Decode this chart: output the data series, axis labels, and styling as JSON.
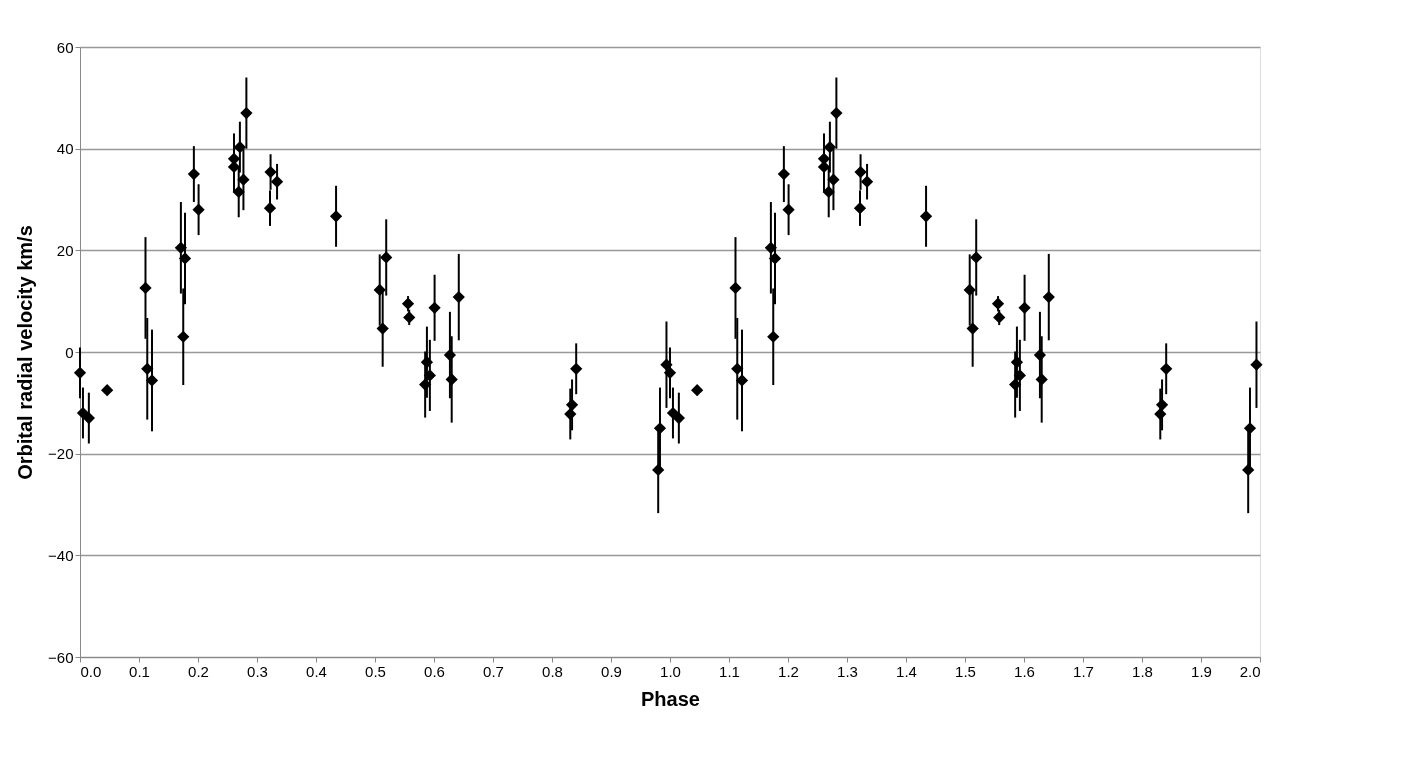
{
  "chart_data": {
    "type": "scatter",
    "xlabel": "Phase",
    "ylabel": "Orbital radial velocity km/s",
    "x": [
      0.0,
      0.005,
      0.015,
      0.046,
      0.111,
      0.114,
      0.122,
      0.171,
      0.175,
      0.178,
      0.193,
      0.201,
      0.261,
      0.261,
      0.269,
      0.271,
      0.277,
      0.282,
      0.322,
      0.323,
      0.334,
      0.434,
      0.508,
      0.513,
      0.519,
      0.556,
      0.558,
      0.585,
      0.588,
      0.593,
      0.601,
      0.627,
      0.63,
      0.642,
      0.831,
      0.834,
      0.841,
      0.98,
      0.983,
      0.994,
      1.0,
      1.005,
      1.015,
      1.046,
      1.111,
      1.114,
      1.122,
      1.171,
      1.175,
      1.178,
      1.193,
      1.201,
      1.261,
      1.261,
      1.269,
      1.271,
      1.277,
      1.282,
      1.322,
      1.323,
      1.334,
      1.434,
      1.508,
      1.513,
      1.519,
      1.556,
      1.558,
      1.585,
      1.588,
      1.593,
      1.601,
      1.627,
      1.63,
      1.642,
      1.831,
      1.834,
      1.841,
      1.98,
      1.983,
      1.994
    ],
    "series": [
      {
        "color": "#000000",
        "values": [
          -4.1,
          -12,
          -13,
          -7.5,
          12.6,
          -3.3,
          -5.6,
          20.5,
          3,
          18.4,
          35,
          28,
          38,
          36.4,
          31.5,
          40.3,
          33.9,
          47,
          28.3,
          35.4,
          33.5,
          26.7,
          12.2,
          4.6,
          18.6,
          9.5,
          6.8,
          -6.4,
          -2,
          -4.6,
          8.7,
          -0.6,
          -5.4,
          10.8,
          -12.2,
          -10.4,
          -3.3,
          -23.2,
          -15,
          -2.5,
          -4.1,
          -12,
          -13,
          -7.5,
          12.6,
          -3.3,
          -5.6,
          20.5,
          3,
          18.4,
          35,
          28,
          38,
          36.4,
          31.5,
          40.3,
          33.9,
          47,
          28.3,
          35.4,
          33.5,
          26.7,
          12.2,
          4.6,
          18.6,
          9.5,
          6.8,
          -6.4,
          -2,
          -4.6,
          8.7,
          -0.6,
          -5.4,
          10.8,
          -12.2,
          -10.4,
          -3.3,
          -23.2,
          -15,
          -2.5
        ],
        "errors": [
          5,
          5,
          5,
          1,
          10,
          10,
          10,
          9,
          9.5,
          9,
          5.5,
          5,
          5,
          5,
          5,
          5,
          6,
          7,
          3.5,
          3.5,
          3.5,
          6,
          7,
          7.5,
          7.5,
          1.5,
          1.5,
          6.5,
          7,
          7,
          6.5,
          8.5,
          8.5,
          8.5,
          5,
          5,
          5,
          8.5,
          8,
          8.5,
          5,
          5,
          5,
          1,
          10,
          10,
          10,
          9,
          9.5,
          9,
          5.5,
          5,
          5,
          5,
          5,
          5,
          6,
          7,
          3.5,
          3.5,
          3.5,
          6,
          7,
          7.5,
          7.5,
          1.5,
          1.5,
          6.5,
          7,
          7,
          6.5,
          8.5,
          8.5,
          8.5,
          5,
          5,
          5,
          8.5,
          8,
          8.5
        ]
      }
    ],
    "xlim": [
      0,
      2
    ],
    "ylim": [
      -60,
      60
    ],
    "xticks": [
      {
        "value": 0,
        "label": "0.0"
      },
      {
        "value": 0.1,
        "label": "0.1"
      },
      {
        "value": 0.2,
        "label": "0.2"
      },
      {
        "value": 0.3,
        "label": "0.3"
      },
      {
        "value": 0.4,
        "label": "0.4"
      },
      {
        "value": 0.5,
        "label": "0.5"
      },
      {
        "value": 0.6,
        "label": "0.6"
      },
      {
        "value": 0.7,
        "label": "0.7"
      },
      {
        "value": 0.8,
        "label": "0.8"
      },
      {
        "value": 0.9,
        "label": "0.9"
      },
      {
        "value": 1,
        "label": "1.0"
      },
      {
        "value": 1.1,
        "label": "1.1"
      },
      {
        "value": 1.2,
        "label": "1.2"
      },
      {
        "value": 1.3,
        "label": "1.3"
      },
      {
        "value": 1.4,
        "label": "1.4"
      },
      {
        "value": 1.5,
        "label": "1.5"
      },
      {
        "value": 1.6,
        "label": "1.6"
      },
      {
        "value": 1.7,
        "label": "1.7"
      },
      {
        "value": 1.8,
        "label": "1.8"
      },
      {
        "value": 1.9,
        "label": "1.9"
      },
      {
        "value": 2,
        "label": "2.0"
      }
    ],
    "yticks": [
      -60,
      -40,
      -20,
      0,
      20,
      40,
      60
    ],
    "grid": "y",
    "marker": "diamond"
  }
}
